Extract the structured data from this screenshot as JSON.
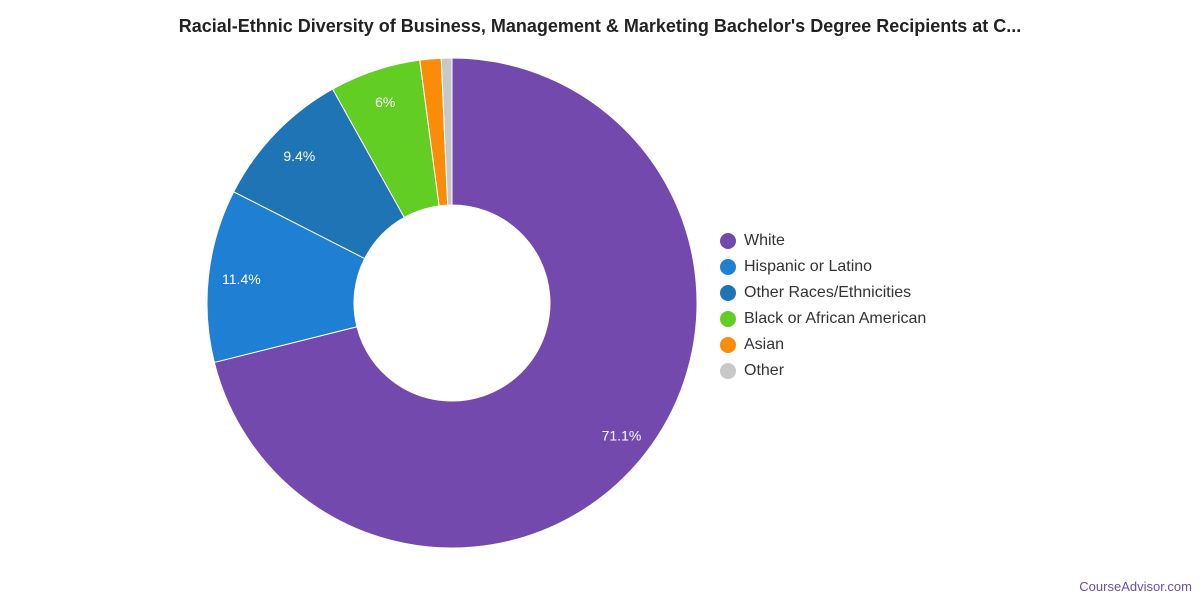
{
  "chart_data": {
    "type": "pie",
    "variant": "donut",
    "title": "Racial-Ethnic Diversity of Business, Management & Marketing Bachelor's Degree Recipients at C...",
    "legend_position": "right",
    "slices": [
      {
        "label": "White",
        "value": 71.1,
        "display": "71.1%",
        "color": "#7449ad"
      },
      {
        "label": "Hispanic or Latino",
        "value": 11.4,
        "display": "11.4%",
        "color": "#1f7fd3"
      },
      {
        "label": "Other Races/Ethnicities",
        "value": 9.4,
        "display": "9.4%",
        "color": "#1f74b6"
      },
      {
        "label": "Black or African American",
        "value": 6.0,
        "display": "6%",
        "color": "#62ce24"
      },
      {
        "label": "Asian",
        "value": 1.4,
        "display": "",
        "color": "#fb8c0a"
      },
      {
        "label": "Other",
        "value": 0.7,
        "display": "",
        "color": "#c8c8c8"
      }
    ]
  },
  "credit": "CourseAdvisor.com"
}
